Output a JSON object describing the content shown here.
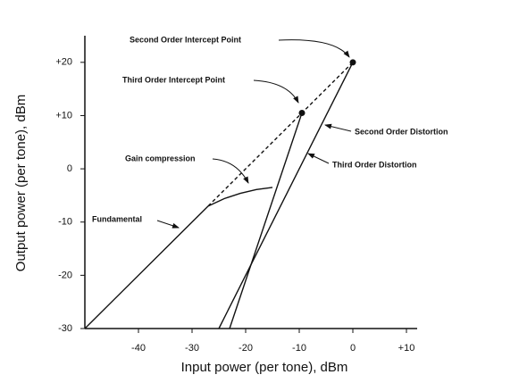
{
  "chart_data": {
    "type": "line",
    "x_label": "Input power (per tone), dBm",
    "y_label": "Output power (per tone), dBm",
    "xlim": [
      -50,
      12
    ],
    "ylim": [
      -30,
      25
    ],
    "xticks": [
      -40,
      -30,
      -20,
      -10,
      0,
      {
        "value": 10,
        "label": "+10"
      }
    ],
    "yticks": [
      {
        "value": 20,
        "label": "+20"
      },
      {
        "value": 10,
        "label": "+10"
      },
      0,
      -10,
      -20,
      -30
    ],
    "color": "#111111",
    "series": [
      {
        "name": "Fundamental",
        "x": [
          -50,
          -27
        ],
        "values": [
          -30,
          -7
        ],
        "dashed": false
      },
      {
        "x": [
          -27,
          0
        ],
        "values": [
          -7,
          20
        ],
        "dashed": true
      },
      {
        "name": "Gain compression",
        "x": [
          -27,
          -24,
          -21,
          -18,
          -15
        ],
        "values": [
          -7,
          -5.6,
          -4.6,
          -3.9,
          -3.5
        ],
        "dashed": false
      },
      {
        "name": "Second Order Distortion",
        "x": [
          -25,
          0
        ],
        "values": [
          -30,
          20
        ],
        "dashed": false
      },
      {
        "name": "Third Order Distortion",
        "x": [
          -23,
          -9.5
        ],
        "values": [
          -30,
          10.5
        ],
        "dashed": false
      }
    ],
    "markers": [
      {
        "label": "Second Order Intercept Point",
        "x": 0,
        "y": 20
      },
      {
        "label": "Third Order Intercept Point",
        "x": -9.5,
        "y": 10.5
      }
    ]
  }
}
